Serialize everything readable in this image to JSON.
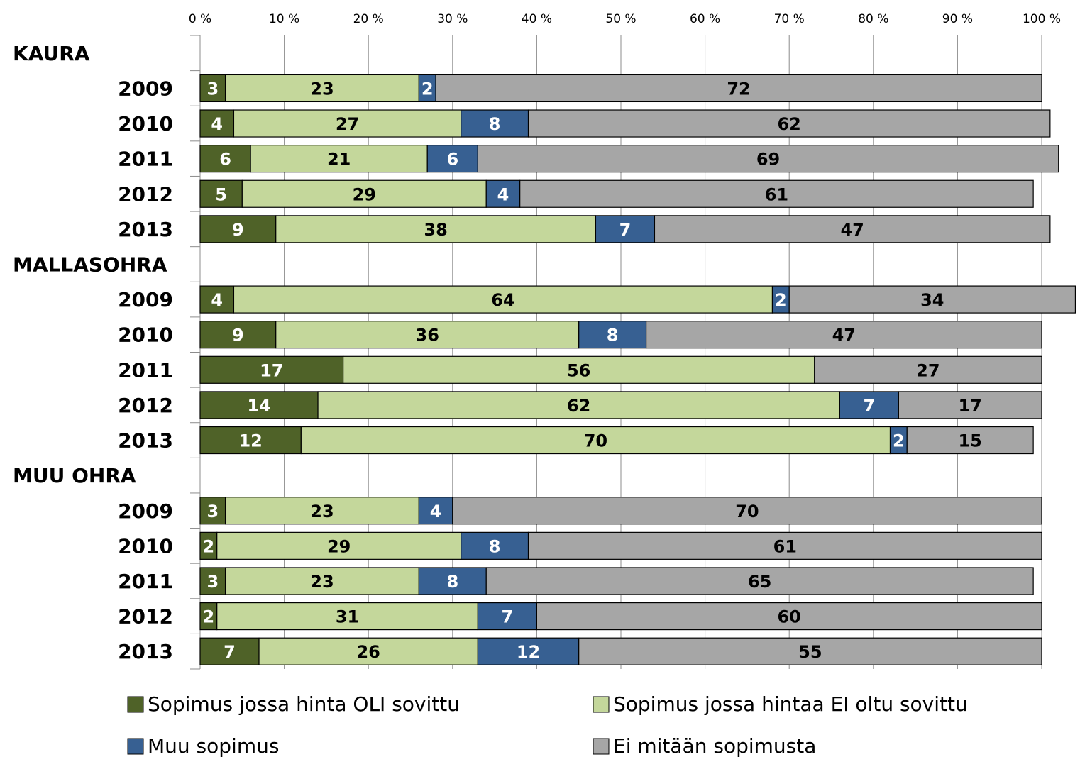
{
  "chart_data": {
    "type": "stacked-barh",
    "categories": [
      "KAURA",
      "2009",
      "2010",
      "2011",
      "2012",
      "2013",
      "MALLASOHRA",
      "2009",
      "2010",
      "2011",
      "2012",
      "2013",
      "MUU OHRA",
      "2009",
      "2010",
      "2011",
      "2012",
      "2013"
    ],
    "series": [
      {
        "name": "Sopimus jossa hinta OLI sovittu",
        "color": "#4f6228",
        "label_color": "#ffffff",
        "values": [
          null,
          3,
          4,
          6,
          5,
          9,
          null,
          4,
          9,
          17,
          14,
          12,
          null,
          3,
          2,
          3,
          2,
          7
        ]
      },
      {
        "name": "Sopimus jossa hintaa EI oltu sovittu",
        "color": "#c4d79b",
        "label_color": "#000000",
        "values": [
          null,
          23,
          27,
          21,
          29,
          38,
          null,
          64,
          36,
          56,
          62,
          70,
          null,
          23,
          29,
          23,
          31,
          26
        ]
      },
      {
        "name": "Muu sopimus",
        "color": "#376092",
        "label_color": "#ffffff",
        "values": [
          null,
          2,
          8,
          6,
          4,
          7,
          null,
          2,
          8,
          null,
          7,
          2,
          null,
          4,
          8,
          8,
          7,
          12
        ]
      },
      {
        "name": "Ei mitään sopimusta",
        "color": "#a6a6a6",
        "label_color": "#000000",
        "values": [
          null,
          72,
          62,
          69,
          61,
          47,
          null,
          34,
          47,
          27,
          17,
          15,
          null,
          70,
          61,
          65,
          60,
          55
        ]
      }
    ],
    "xlim": [
      0,
      100
    ],
    "xticks": [
      {
        "value": 0,
        "label": "0 %"
      },
      {
        "value": 10,
        "label": "10 %"
      },
      {
        "value": 20,
        "label": "20 %"
      },
      {
        "value": 30,
        "label": "30 %"
      },
      {
        "value": 40,
        "label": "40 %"
      },
      {
        "value": 50,
        "label": "50 %"
      },
      {
        "value": 60,
        "label": "60 %"
      },
      {
        "value": 70,
        "label": "70 %"
      },
      {
        "value": 80,
        "label": "80 %"
      },
      {
        "value": 90,
        "label": "90 %"
      },
      {
        "value": 100,
        "label": "100 %"
      }
    ],
    "grid": true,
    "legend": "bottom"
  }
}
